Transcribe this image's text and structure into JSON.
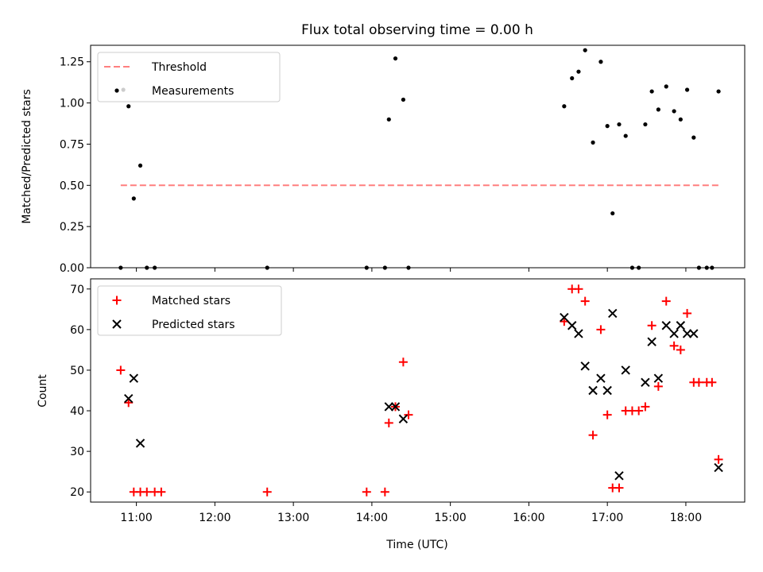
{
  "chart_data": [
    {
      "type": "scatter",
      "title": "Flux total observing time = 0.00 h",
      "ylabel": "Matched/Predicted stars",
      "xlabel": "",
      "xlim": [
        "10:25",
        "18:45"
      ],
      "ylim": [
        0,
        1.35
      ],
      "yticks": [
        0.0,
        0.25,
        0.5,
        0.75,
        1.0,
        1.25
      ],
      "ytick_labels": [
        "0.00",
        "0.25",
        "0.50",
        "0.75",
        "1.00",
        "1.25"
      ],
      "legend": {
        "placement": "top-left",
        "entries": [
          "Threshold",
          "Measurements"
        ]
      },
      "series": [
        {
          "name": "Threshold",
          "kind": "dashed-line",
          "color": "#ff7f7f",
          "x": [
            "10:48",
            "18:25"
          ],
          "y": [
            0.5,
            0.5
          ]
        },
        {
          "name": "Measurements",
          "kind": "dot",
          "color": "#000000",
          "x": [
            "10:48",
            "10:50",
            "10:54",
            "10:58",
            "11:03",
            "11:08",
            "11:14",
            "12:40",
            "13:56",
            "14:10",
            "14:13",
            "14:18",
            "14:24",
            "14:28",
            "16:27",
            "16:33",
            "16:38",
            "16:43",
            "16:49",
            "16:55",
            "17:00",
            "17:04",
            "17:09",
            "17:14",
            "17:19",
            "17:24",
            "17:29",
            "17:34",
            "17:39",
            "17:45",
            "17:51",
            "17:56",
            "18:01",
            "18:06",
            "18:10",
            "18:16",
            "18:20",
            "18:25"
          ],
          "y": [
            0,
            1.08,
            0.98,
            0.42,
            0.62,
            0,
            0,
            0,
            0,
            0,
            0.9,
            1.27,
            1.02,
            0,
            0.98,
            1.15,
            1.19,
            1.32,
            0.76,
            1.25,
            0.86,
            0.33,
            0.87,
            0.8,
            0,
            0,
            0.87,
            1.07,
            0.96,
            1.1,
            0.95,
            0.9,
            1.08,
            0.79,
            0,
            0,
            0,
            1.07
          ]
        }
      ]
    },
    {
      "type": "scatter",
      "title": "",
      "xlabel": "Time (UTC)",
      "ylabel": "Count",
      "xlim": [
        "10:25",
        "18:45"
      ],
      "ylim": [
        17.5,
        72.5
      ],
      "xticks": [
        "11:00",
        "12:00",
        "13:00",
        "14:00",
        "15:00",
        "16:00",
        "17:00",
        "18:00"
      ],
      "yticks": [
        20,
        30,
        40,
        50,
        60,
        70
      ],
      "ytick_labels": [
        "20",
        "30",
        "40",
        "50",
        "60",
        "70"
      ],
      "legend": {
        "placement": "top-left",
        "entries": [
          "Matched stars",
          "Predicted stars"
        ]
      },
      "series": [
        {
          "name": "Matched stars",
          "kind": "plus",
          "color": "#ff0000",
          "x": [
            "10:48",
            "10:54",
            "10:58",
            "11:03",
            "11:08",
            "11:14",
            "11:19",
            "12:40",
            "13:56",
            "14:10",
            "14:13",
            "14:18",
            "14:24",
            "14:28",
            "16:27",
            "16:33",
            "16:38",
            "16:43",
            "16:49",
            "16:55",
            "17:00",
            "17:04",
            "17:09",
            "17:14",
            "17:19",
            "17:24",
            "17:29",
            "17:34",
            "17:39",
            "17:45",
            "17:51",
            "17:56",
            "18:01",
            "18:06",
            "18:10",
            "18:16",
            "18:20",
            "18:25"
          ],
          "y": [
            50,
            42,
            20,
            20,
            20,
            20,
            20,
            20,
            20,
            20,
            37,
            41,
            52,
            39,
            62,
            70,
            70,
            67,
            34,
            60,
            39,
            21,
            21,
            40,
            40,
            40,
            41,
            61,
            46,
            67,
            56,
            55,
            64,
            47,
            47,
            47,
            47,
            28
          ]
        },
        {
          "name": "Predicted stars",
          "kind": "x",
          "color": "#000000",
          "x": [
            "10:54",
            "10:58",
            "11:03",
            "14:13",
            "14:18",
            "14:24",
            "16:27",
            "16:33",
            "16:38",
            "16:43",
            "16:49",
            "16:55",
            "17:00",
            "17:04",
            "17:09",
            "17:14",
            "17:29",
            "17:34",
            "17:39",
            "17:45",
            "17:51",
            "17:56",
            "18:01",
            "18:06",
            "18:25"
          ],
          "y": [
            43,
            48,
            32,
            41,
            41,
            38,
            63,
            61,
            59,
            51,
            45,
            48,
            45,
            64,
            24,
            50,
            47,
            57,
            48,
            61,
            59,
            61,
            59,
            59,
            26
          ]
        }
      ]
    }
  ]
}
